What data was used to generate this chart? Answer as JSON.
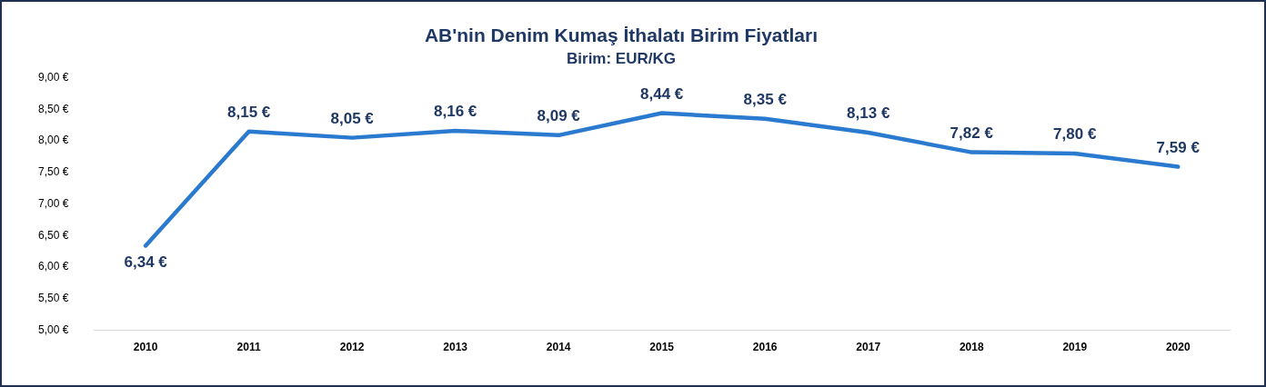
{
  "chart_data": {
    "type": "line",
    "title": "AB'nin Denim Kumaş İthalatı Birim Fiyatları",
    "subtitle": "Birim: EUR/KG",
    "categories": [
      "2010",
      "2011",
      "2012",
      "2013",
      "2014",
      "2015",
      "2016",
      "2017",
      "2018",
      "2019",
      "2020"
    ],
    "series": [
      {
        "color": "#2a7ad0",
        "values": [
          6.34,
          8.15,
          8.05,
          8.16,
          8.09,
          8.44,
          8.35,
          8.13,
          7.82,
          7.8,
          7.59
        ],
        "value_labels": [
          "6,34 €",
          "8,15 €",
          "8,05 €",
          "8,16 €",
          "8,09 €",
          "8,44 €",
          "8,35 €",
          "8,13 €",
          "7,82 €",
          "7,80 €",
          "7,59 €"
        ]
      }
    ],
    "ylim": [
      5,
      9
    ],
    "yticks": [
      {
        "value": 5,
        "label": "5,00 €"
      },
      {
        "value": 5.5,
        "label": "5,50 €"
      },
      {
        "value": 6,
        "label": "6,00 €"
      },
      {
        "value": 6.5,
        "label": "6,50 €"
      },
      {
        "value": 7,
        "label": "7,00 €"
      },
      {
        "value": 7.5,
        "label": "7,50 €"
      },
      {
        "value": 8,
        "label": "8,00 €"
      },
      {
        "value": 8.5,
        "label": "8,50 €"
      },
      {
        "value": 9,
        "label": "9,00 €"
      }
    ],
    "grid": false,
    "legend": false,
    "marker": "none",
    "line_style": "solid"
  }
}
